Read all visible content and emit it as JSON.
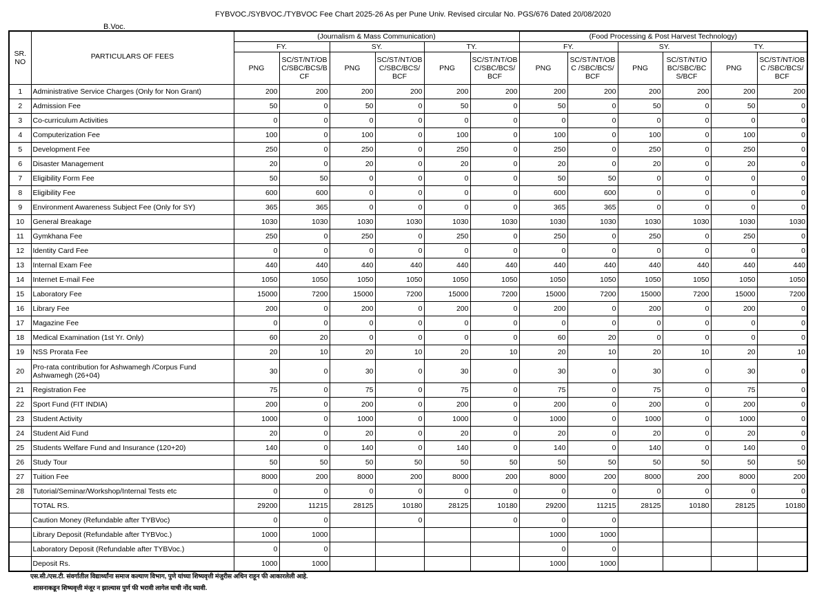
{
  "title": "FYBVOC./SYBVOC./TYBVOC  Fee Chart 2025-26 As per Pune Univ. Revised circular No. PGS/676 Dated 20/08/2020",
  "subtitle": "B.Voc.",
  "header": {
    "sr": "SR. NO",
    "particulars": "PARTICULARS  OF FEES",
    "groups": [
      "(Journalism & Mass Communication)",
      "(Food Processing & Post Harvest Technology)"
    ],
    "years": [
      "FY.",
      "SY.",
      "TY.",
      "FY.",
      "SY.",
      "TY."
    ],
    "cols": [
      "PNG",
      "SC/ST/NT/OBC/SBC/BCS/BCF",
      "PNG",
      "SC/ST/NT/OBC/SBC/BCS/BCF",
      "PNG",
      "SC/ST/NT/OBC/SBC/BCS/BCF",
      "PNG",
      "SC/ST/NT/OBC /SBC/BCS/BCF",
      "PNG",
      "SC/ST/NT/OBC/SBC/BCS/BCF",
      "PNG",
      "SC/ST/NT/OBC /SBC/BCS/BCF"
    ]
  },
  "rows": [
    {
      "sr": "1",
      "name": "Administrative Service Charges (Only for Non Grant)",
      "v": [
        200,
        200,
        200,
        200,
        200,
        200,
        200,
        200,
        200,
        200,
        200,
        200
      ]
    },
    {
      "sr": "2",
      "name": "Admission Fee",
      "v": [
        50,
        0,
        50,
        0,
        50,
        0,
        50,
        0,
        50,
        0,
        50,
        0
      ]
    },
    {
      "sr": "3",
      "name": "Co-curriculum Activities",
      "v": [
        0,
        0,
        0,
        0,
        0,
        0,
        0,
        0,
        0,
        0,
        0,
        0
      ]
    },
    {
      "sr": "4",
      "name": "Computerization Fee",
      "v": [
        100,
        0,
        100,
        0,
        100,
        0,
        100,
        0,
        100,
        0,
        100,
        0
      ]
    },
    {
      "sr": "5",
      "name": "Development Fee",
      "v": [
        250,
        0,
        250,
        0,
        250,
        0,
        250,
        0,
        250,
        0,
        250,
        0
      ]
    },
    {
      "sr": "6",
      "name": "Disaster Management",
      "v": [
        20,
        0,
        20,
        0,
        20,
        0,
        20,
        0,
        20,
        0,
        20,
        0
      ]
    },
    {
      "sr": "7",
      "name": "Eligibility  Form  Fee",
      "v": [
        50,
        50,
        0,
        0,
        0,
        0,
        50,
        50,
        0,
        0,
        0,
        0
      ]
    },
    {
      "sr": "8",
      "name": "Eligibility Fee",
      "v": [
        600,
        600,
        0,
        0,
        0,
        0,
        600,
        600,
        0,
        0,
        0,
        0
      ]
    },
    {
      "sr": "9",
      "name": "Environment Awareness Subject Fee (Only for SY)",
      "v": [
        365,
        365,
        0,
        0,
        0,
        0,
        365,
        365,
        0,
        0,
        0,
        0
      ]
    },
    {
      "sr": "10",
      "name": "General Breakage",
      "v": [
        1030,
        1030,
        1030,
        1030,
        1030,
        1030,
        1030,
        1030,
        1030,
        1030,
        1030,
        1030
      ]
    },
    {
      "sr": "11",
      "name": "Gymkhana Fee",
      "v": [
        250,
        0,
        250,
        0,
        250,
        0,
        250,
        0,
        250,
        0,
        250,
        0
      ]
    },
    {
      "sr": "12",
      "name": "Identity  Card Fee",
      "v": [
        0,
        0,
        0,
        0,
        0,
        0,
        0,
        0,
        0,
        0,
        0,
        0
      ]
    },
    {
      "sr": "13",
      "name": "Internal Exam Fee",
      "v": [
        440,
        440,
        440,
        440,
        440,
        440,
        440,
        440,
        440,
        440,
        440,
        440
      ]
    },
    {
      "sr": "14",
      "name": "Internet E-mail Fee",
      "v": [
        1050,
        1050,
        1050,
        1050,
        1050,
        1050,
        1050,
        1050,
        1050,
        1050,
        1050,
        1050
      ]
    },
    {
      "sr": "15",
      "name": "Laboratory Fee",
      "v": [
        15000,
        7200,
        15000,
        7200,
        15000,
        7200,
        15000,
        7200,
        15000,
        7200,
        15000,
        7200
      ]
    },
    {
      "sr": "16",
      "name": "Library Fee",
      "v": [
        200,
        0,
        200,
        0,
        200,
        0,
        200,
        0,
        200,
        0,
        200,
        0
      ]
    },
    {
      "sr": "17",
      "name": "Magazine Fee",
      "v": [
        0,
        0,
        0,
        0,
        0,
        0,
        0,
        0,
        0,
        0,
        0,
        0
      ]
    },
    {
      "sr": "18",
      "name": "Medical Examination (1st Yr. Only)",
      "v": [
        60,
        20,
        0,
        0,
        0,
        0,
        60,
        20,
        0,
        0,
        0,
        0
      ]
    },
    {
      "sr": "19",
      "name": "NSS Prorata Fee",
      "v": [
        20,
        10,
        20,
        10,
        20,
        10,
        20,
        10,
        20,
        10,
        20,
        10
      ]
    },
    {
      "sr": "20",
      "name": "Pro-rata contribution for Ashwamegh /Corpus Fund Ashwamegh  (26+04)",
      "v": [
        30,
        0,
        30,
        0,
        30,
        0,
        30,
        0,
        30,
        0,
        30,
        0
      ],
      "tall": true
    },
    {
      "sr": "21",
      "name": "Registration Fee",
      "v": [
        75,
        0,
        75,
        0,
        75,
        0,
        75,
        0,
        75,
        0,
        75,
        0
      ]
    },
    {
      "sr": "22",
      "name": "Sport Fund (FIT INDIA)",
      "v": [
        200,
        0,
        200,
        0,
        200,
        0,
        200,
        0,
        200,
        0,
        200,
        0
      ]
    },
    {
      "sr": "23",
      "name": "Student Activity",
      "v": [
        1000,
        0,
        1000,
        0,
        1000,
        0,
        1000,
        0,
        1000,
        0,
        1000,
        0
      ]
    },
    {
      "sr": "24",
      "name": "Student Aid Fund",
      "v": [
        20,
        0,
        20,
        0,
        20,
        0,
        20,
        0,
        20,
        0,
        20,
        0
      ]
    },
    {
      "sr": "25",
      "name": "Students Welfare Fund   and Insurance (120+20)",
      "v": [
        140,
        0,
        140,
        0,
        140,
        0,
        140,
        0,
        140,
        0,
        140,
        0
      ]
    },
    {
      "sr": "26",
      "name": "Study Tour",
      "v": [
        50,
        50,
        50,
        50,
        50,
        50,
        50,
        50,
        50,
        50,
        50,
        50
      ]
    },
    {
      "sr": "27",
      "name": "Tuition Fee",
      "v": [
        8000,
        200,
        8000,
        200,
        8000,
        200,
        8000,
        200,
        8000,
        200,
        8000,
        200
      ]
    },
    {
      "sr": "28",
      "name": "Tutorial/Seminar/Workshop/Internal Tests etc",
      "v": [
        0,
        0,
        0,
        0,
        0,
        0,
        0,
        0,
        0,
        0,
        0,
        0
      ]
    },
    {
      "sr": "",
      "name": "TOTAL RS.",
      "v": [
        29200,
        11215,
        28125,
        10180,
        28125,
        10180,
        29200,
        11215,
        28125,
        10180,
        28125,
        10180
      ]
    },
    {
      "sr": "",
      "name": "Caution Money  (Refundable after TYBVoc)",
      "v": [
        0,
        0,
        null,
        0,
        null,
        0,
        0,
        0,
        null,
        null,
        null,
        null
      ]
    },
    {
      "sr": "",
      "name": "Library Deposit (Refundable after TYBVoc.)",
      "v": [
        1000,
        1000,
        null,
        null,
        null,
        null,
        1000,
        1000,
        null,
        null,
        null,
        null
      ]
    },
    {
      "sr": "",
      "name": "Laboratory Deposit (Refundable after TYBVoc.)",
      "v": [
        0,
        0,
        null,
        null,
        null,
        null,
        0,
        0,
        null,
        null,
        null,
        null
      ]
    },
    {
      "sr": "",
      "name": "Deposit Rs.",
      "v": [
        1000,
        1000,
        null,
        null,
        null,
        null,
        1000,
        1000,
        null,
        null,
        null,
        null
      ]
    }
  ],
  "footnotes": [
    "एस.सी./एस.टी. संवर्गातील विद्यार्थ्यांना समाज कल्याण विभाग, पुणे यांच्या शिष्यवृत्ती मंजुरीस अधिन राहून फी आकारलेली आहे.",
    "शासनाकडून शिष्यवृत्ती मंजूर न झाल्यास पुर्ण फी भरावी लागेल याची नोंद घ्यावी."
  ]
}
